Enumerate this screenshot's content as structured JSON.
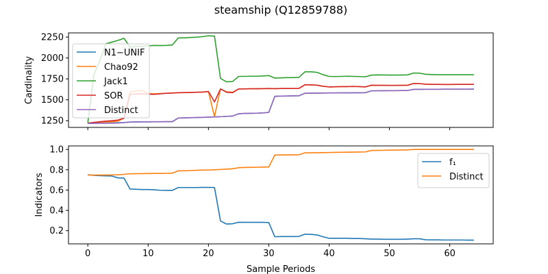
{
  "chart_data": {
    "title": "steamship (Q12859788)",
    "xlabel": "Sample Periods",
    "x_ticks": [
      0,
      10,
      20,
      30,
      40,
      50,
      60
    ],
    "xlim": [
      -3.2,
      67.2
    ],
    "colors": {
      "blue": "#1f77b4",
      "orange": "#ff7f0e",
      "green": "#2ca02c",
      "red": "#d62728",
      "purple": "#9467bd"
    },
    "panels": [
      {
        "type": "line",
        "ylabel": "Cardinality",
        "ylim": [
          1170,
          2300
        ],
        "y_ticks": [
          1250,
          1500,
          1750,
          2000,
          2250
        ],
        "y_tick_labels": [
          "1250",
          "1500",
          "1750",
          "2000",
          "2250"
        ],
        "legend_position": "upper-left",
        "series": [
          {
            "name": "N1−UNIF",
            "color": "#1f77b4",
            "values": [
              1220,
              1220,
              1222,
              1222,
              1224,
              1226,
              1228,
              1233,
              1235,
              1236,
              1236,
              1237,
              1237,
              1238,
              1238,
              1282,
              1284,
              1286,
              1288,
              1290,
              1292,
              1295,
              1298,
              1302,
              1306,
              1333,
              1337,
              1338,
              1340,
              1343,
              1350,
              1542,
              1544,
              1545,
              1547,
              1548,
              1578,
              1579,
              1580,
              1581,
              1582,
              1582,
              1583,
              1583,
              1584,
              1584,
              1585,
              1607,
              1608,
              1609,
              1610,
              1610,
              1611,
              1611,
              1625,
              1625,
              1626,
              1626,
              1626,
              1627,
              1627,
              1627,
              1627,
              1627,
              1628
            ]
          },
          {
            "name": "Chao92",
            "color": "#ff7f0e",
            "values": [
              1220,
              1228,
              1232,
              1236,
              1238,
              1245,
              1280,
              1595,
              1605,
              1608,
              1575,
              1572,
              1575,
              1578,
              1582,
              1584,
              1586,
              1588,
              1590,
              1592,
              1597,
              1300,
              1630,
              1595,
              1590,
              1630,
              1630,
              1632,
              1632,
              1633,
              1635,
              1633,
              1635,
              1635,
              1635,
              1636,
              1680,
              1678,
              1675,
              1662,
              1654,
              1656,
              1658,
              1658,
              1660,
              1658,
              1654,
              1674,
              1673,
              1673,
              1672,
              1672,
              1673,
              1674,
              1695,
              1694,
              1686,
              1684,
              1684,
              1683,
              1683,
              1684,
              1684,
              1684,
              1684
            ]
          },
          {
            "name": "Jack1",
            "color": "#2ca02c",
            "values": [
              1225,
              1800,
              1970,
              2170,
              2190,
              2210,
              2235,
              2130,
              2140,
              2140,
              2145,
              2150,
              2148,
              2150,
              2155,
              2240,
              2240,
              2245,
              2248,
              2255,
              2265,
              2262,
              1755,
              1715,
              1718,
              1780,
              1780,
              1782,
              1782,
              1785,
              1790,
              1760,
              1762,
              1765,
              1765,
              1768,
              1835,
              1835,
              1828,
              1800,
              1780,
              1778,
              1780,
              1782,
              1780,
              1778,
              1775,
              1795,
              1798,
              1797,
              1796,
              1796,
              1796,
              1798,
              1820,
              1818,
              1805,
              1802,
              1800,
              1800,
              1800,
              1800,
              1800,
              1800,
              1800
            ]
          },
          {
            "name": "SOR",
            "color": "#d62728",
            "values": [
              1222,
              1230,
              1238,
              1245,
              1250,
              1258,
              1280,
              1565,
              1570,
              1572,
              1568,
              1565,
              1572,
              1578,
              1580,
              1585,
              1586,
              1587,
              1590,
              1592,
              1600,
              1475,
              1630,
              1590,
              1585,
              1630,
              1630,
              1632,
              1632,
              1633,
              1635,
              1633,
              1635,
              1635,
              1635,
              1636,
              1680,
              1678,
              1675,
              1662,
              1654,
              1656,
              1658,
              1658,
              1660,
              1658,
              1654,
              1674,
              1673,
              1673,
              1672,
              1672,
              1673,
              1674,
              1695,
              1694,
              1686,
              1684,
              1684,
              1683,
              1683,
              1684,
              1684,
              1684,
              1684
            ]
          },
          {
            "name": "Distinct",
            "color": "#9467bd",
            "values": [
              1218,
              1219,
              1220,
              1220,
              1221,
              1222,
              1228,
              1235,
              1236,
              1237,
              1237,
              1238,
              1238,
              1239,
              1240,
              1282,
              1284,
              1286,
              1288,
              1290,
              1292,
              1295,
              1298,
              1302,
              1306,
              1333,
              1337,
              1338,
              1340,
              1343,
              1350,
              1542,
              1544,
              1545,
              1547,
              1548,
              1578,
              1579,
              1580,
              1581,
              1582,
              1582,
              1583,
              1583,
              1584,
              1584,
              1585,
              1607,
              1608,
              1609,
              1610,
              1610,
              1611,
              1611,
              1625,
              1625,
              1626,
              1626,
              1626,
              1627,
              1627,
              1627,
              1627,
              1627,
              1628
            ]
          }
        ]
      },
      {
        "type": "line",
        "ylabel": "Indicators",
        "ylim": [
          0.07,
          1.035
        ],
        "y_ticks": [
          0.2,
          0.4,
          0.6,
          0.8,
          1.0
        ],
        "y_tick_labels": [
          "0.2",
          "0.4",
          "0.6",
          "0.8",
          "1.0"
        ],
        "legend_position": "upper-right",
        "series": [
          {
            "name": "f₁",
            "color": "#1f77b4",
            "values": [
              0.75,
              0.745,
              0.742,
              0.74,
              0.738,
              0.72,
              0.718,
              0.61,
              0.608,
              0.605,
              0.605,
              0.603,
              0.598,
              0.597,
              0.597,
              0.625,
              0.625,
              0.625,
              0.625,
              0.626,
              0.626,
              0.625,
              0.295,
              0.265,
              0.268,
              0.283,
              0.282,
              0.282,
              0.282,
              0.282,
              0.28,
              0.14,
              0.142,
              0.142,
              0.142,
              0.143,
              0.165,
              0.163,
              0.158,
              0.14,
              0.125,
              0.125,
              0.125,
              0.125,
              0.123,
              0.123,
              0.12,
              0.117,
              0.117,
              0.115,
              0.115,
              0.115,
              0.115,
              0.117,
              0.12,
              0.12,
              0.11,
              0.109,
              0.109,
              0.108,
              0.108,
              0.108,
              0.108,
              0.107,
              0.107
            ]
          },
          {
            "name": "Distinct",
            "color": "#ff7f0e",
            "values": [
              0.748,
              0.748,
              0.748,
              0.748,
              0.749,
              0.75,
              0.755,
              0.76,
              0.761,
              0.762,
              0.763,
              0.764,
              0.764,
              0.765,
              0.766,
              0.79,
              0.79,
              0.792,
              0.795,
              0.797,
              0.798,
              0.8,
              0.803,
              0.806,
              0.81,
              0.82,
              0.823,
              0.824,
              0.825,
              0.826,
              0.828,
              0.945,
              0.946,
              0.946,
              0.947,
              0.948,
              0.967,
              0.967,
              0.968,
              0.969,
              0.97,
              0.971,
              0.972,
              0.973,
              0.974,
              0.975,
              0.976,
              0.99,
              0.991,
              0.992,
              0.993,
              0.994,
              0.995,
              0.996,
              1.0,
              1.0,
              1.0,
              1.0,
              1.0,
              1.0,
              1.0,
              1.0,
              1.0,
              1.0,
              1.0
            ]
          }
        ]
      }
    ]
  }
}
